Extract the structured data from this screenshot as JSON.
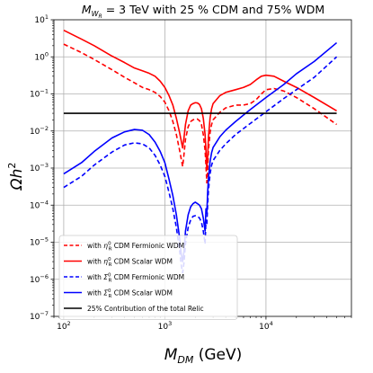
{
  "chart_data": {
    "type": "line",
    "title": "M",
    "title_sub": "W",
    "title_subsub": "R",
    "title_rest": " = 3 TeV with 25 % CDM and 75% WDM",
    "xlabel": "M",
    "xlabel_sub": "DM",
    "xlabel_rest": " (GeV)",
    "ylabel": "Ωh",
    "ylabel_sup": "2",
    "xscale": "log",
    "yscale": "log",
    "xlim": [
      80,
      70000
    ],
    "ylim": [
      1e-07,
      10
    ],
    "grid": true,
    "legend_position": "bottom-left",
    "x_ticks": [
      {
        "value": 100,
        "base": "10",
        "exp": "2"
      },
      {
        "value": 1000,
        "base": "10",
        "exp": "3"
      },
      {
        "value": 10000,
        "base": "10",
        "exp": "4"
      }
    ],
    "y_ticks": [
      {
        "value": 1e-07,
        "base": "10",
        "exp": "−7"
      },
      {
        "value": 1e-06,
        "base": "10",
        "exp": "−6"
      },
      {
        "value": 1e-05,
        "base": "10",
        "exp": "−5"
      },
      {
        "value": 0.0001,
        "base": "10",
        "exp": "−4"
      },
      {
        "value": 0.001,
        "base": "10",
        "exp": "−3"
      },
      {
        "value": 0.01,
        "base": "10",
        "exp": "−2"
      },
      {
        "value": 0.1,
        "base": "10",
        "exp": "−1"
      },
      {
        "value": 1,
        "base": "10",
        "exp": "0"
      },
      {
        "value": 10,
        "base": "10",
        "exp": "1"
      }
    ],
    "series": [
      {
        "name": "with η⁰_R CDM Fermionic WDM",
        "label_pre": "with ",
        "label_sym": "η",
        "label_sup": "0",
        "label_sub": "R",
        "label_post": " CDM Fermionic WDM",
        "color": "#ff0000",
        "dash": "dashed",
        "x": [
          100,
          150,
          200,
          300,
          400,
          500,
          600,
          700,
          800,
          900,
          1000,
          1100,
          1200,
          1300,
          1400,
          1450,
          1500,
          1550,
          1600,
          1700,
          1800,
          1900,
          2000,
          2100,
          2200,
          2300,
          2400,
          2500,
          2550,
          2600,
          2650,
          2700,
          2800,
          2900,
          3000,
          3500,
          4000,
          5000,
          6000,
          7000,
          8000,
          9000,
          10000,
          12000,
          15000,
          20000,
          30000,
          50000
        ],
        "y": [
          2.2,
          1.3,
          0.85,
          0.45,
          0.28,
          0.2,
          0.15,
          0.13,
          0.11,
          0.085,
          0.06,
          0.035,
          0.018,
          0.008,
          0.003,
          0.0018,
          0.0011,
          0.0025,
          0.006,
          0.013,
          0.018,
          0.02,
          0.021,
          0.021,
          0.019,
          0.015,
          0.008,
          0.003,
          0.0012,
          0.0004,
          0.0009,
          0.003,
          0.009,
          0.015,
          0.02,
          0.032,
          0.042,
          0.05,
          0.05,
          0.055,
          0.07,
          0.1,
          0.13,
          0.14,
          0.12,
          0.08,
          0.04,
          0.015
        ]
      },
      {
        "name": "with η⁰_R CDM Scalar WDM",
        "label_pre": "with ",
        "label_sym": "η",
        "label_sup": "0",
        "label_sub": "R",
        "label_post": " CDM Scalar WDM",
        "color": "#ff0000",
        "dash": "solid",
        "x": [
          100,
          150,
          200,
          300,
          400,
          500,
          600,
          700,
          800,
          900,
          1000,
          1100,
          1200,
          1300,
          1400,
          1450,
          1500,
          1550,
          1600,
          1700,
          1800,
          1900,
          2000,
          2100,
          2200,
          2300,
          2400,
          2500,
          2550,
          2600,
          2650,
          2700,
          2800,
          2900,
          3000,
          3500,
          4000,
          5000,
          6000,
          7000,
          8000,
          9000,
          10000,
          12000,
          15000,
          20000,
          30000,
          50000
        ],
        "y": [
          5.2,
          3.0,
          2.0,
          1.05,
          0.7,
          0.5,
          0.42,
          0.36,
          0.3,
          0.22,
          0.15,
          0.09,
          0.05,
          0.022,
          0.009,
          0.0055,
          0.0035,
          0.007,
          0.015,
          0.035,
          0.05,
          0.055,
          0.058,
          0.057,
          0.052,
          0.04,
          0.022,
          0.008,
          0.003,
          0.0009,
          0.002,
          0.007,
          0.022,
          0.04,
          0.055,
          0.09,
          0.11,
          0.13,
          0.15,
          0.18,
          0.24,
          0.3,
          0.32,
          0.3,
          0.22,
          0.15,
          0.08,
          0.035
        ]
      },
      {
        "name": "with Σ⁰_R CDM Fermionic WDM",
        "label_pre": "with ",
        "label_sym": "Σ",
        "label_sup": "0",
        "label_sub": "R",
        "label_post": " CDM Fermionic WDM",
        "color": "#0000ff",
        "dash": "dashed",
        "x": [
          100,
          150,
          200,
          300,
          400,
          500,
          600,
          700,
          800,
          900,
          1000,
          1100,
          1200,
          1300,
          1400,
          1450,
          1500,
          1550,
          1600,
          1700,
          1800,
          1900,
          2000,
          2100,
          2200,
          2300,
          2400,
          2500,
          2550,
          2600,
          2650,
          2700,
          2800,
          2900,
          3000,
          3500,
          4000,
          5000,
          7000,
          10000,
          15000,
          20000,
          30000,
          50000
        ],
        "y": [
          0.0003,
          0.0006,
          0.0012,
          0.0027,
          0.0042,
          0.0048,
          0.0045,
          0.0035,
          0.0022,
          0.0012,
          0.0006,
          0.00022,
          8e-05,
          2.5e-05,
          6e-06,
          2.5e-06,
          1.5e-06,
          3e-06,
          9e-06,
          2.5e-05,
          4e-05,
          5e-05,
          5.2e-05,
          5e-05,
          4.5e-05,
          3.5e-05,
          2e-05,
          9e-06,
          4e-05,
          3e-05,
          0.0001,
          0.00025,
          0.0007,
          0.0012,
          0.0016,
          0.003,
          0.0045,
          0.008,
          0.016,
          0.033,
          0.075,
          0.13,
          0.28,
          1.0
        ]
      },
      {
        "name": "with Σ⁰_R CDM Scalar WDM",
        "label_pre": "with ",
        "label_sym": "Σ",
        "label_sup": "0",
        "label_sub": "R",
        "label_post": " CDM Scalar WDM",
        "color": "#0000ff",
        "dash": "solid",
        "x": [
          100,
          150,
          200,
          300,
          400,
          500,
          600,
          700,
          800,
          900,
          1000,
          1100,
          1200,
          1300,
          1400,
          1450,
          1500,
          1550,
          1600,
          1700,
          1800,
          1900,
          2000,
          2100,
          2200,
          2300,
          2400,
          2500,
          2550,
          2600,
          2650,
          2700,
          2800,
          2900,
          3000,
          3500,
          4000,
          5000,
          7000,
          10000,
          15000,
          20000,
          30000,
          50000
        ],
        "y": [
          0.0007,
          0.0014,
          0.0028,
          0.0065,
          0.0095,
          0.011,
          0.0105,
          0.008,
          0.005,
          0.0028,
          0.0014,
          0.0005,
          0.00018,
          5.5e-05,
          1.3e-05,
          5e-06,
          3e-06,
          6e-06,
          2e-05,
          5.5e-05,
          9e-05,
          0.00011,
          0.00012,
          0.00011,
          0.0001,
          8e-05,
          4.5e-05,
          2e-05,
          8e-05,
          6e-05,
          0.00022,
          0.00055,
          0.0015,
          0.0026,
          0.0036,
          0.007,
          0.0105,
          0.018,
          0.038,
          0.08,
          0.18,
          0.35,
          0.75,
          2.4
        ]
      },
      {
        "name": "25% Contribution of the total Relic",
        "label_pre": "25% Contribution of the total Relic",
        "label_sym": "",
        "label_sup": "",
        "label_sub": "",
        "label_post": "",
        "color": "#000000",
        "dash": "solid",
        "x": [
          100,
          50000
        ],
        "y": [
          0.03,
          0.03
        ]
      }
    ]
  }
}
